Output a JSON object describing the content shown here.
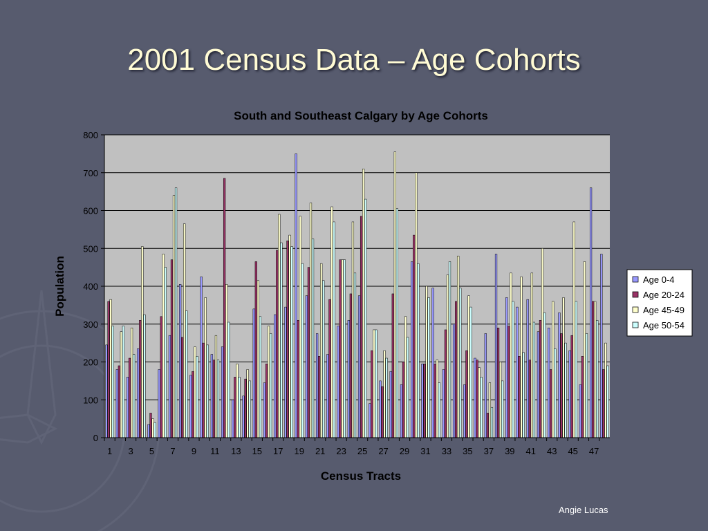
{
  "slide": {
    "title": "2001 Census Data – Age Cohorts",
    "credit": "Angie Lucas"
  },
  "colors": {
    "background": "#575b6e",
    "plot_area": "#c0c0c0",
    "title_text": "#fffbd4"
  },
  "chart_data": {
    "type": "bar",
    "title": "South and Southeast Calgary by Age Cohorts",
    "xlabel": "Census Tracts",
    "ylabel": "Population",
    "ylim": [
      0,
      800
    ],
    "yticks": [
      0,
      100,
      200,
      300,
      400,
      500,
      600,
      700,
      800
    ],
    "grid": true,
    "legend_position": "right",
    "categories": [
      1,
      2,
      3,
      4,
      5,
      6,
      7,
      8,
      9,
      10,
      11,
      12,
      13,
      14,
      15,
      16,
      17,
      18,
      19,
      20,
      21,
      22,
      23,
      24,
      25,
      26,
      27,
      28,
      29,
      30,
      31,
      32,
      33,
      34,
      35,
      36,
      37,
      38,
      39,
      40,
      41,
      42,
      43,
      44,
      45,
      46,
      47,
      48
    ],
    "xtick_labels": [
      "1",
      "3",
      "5",
      "7",
      "9",
      "11",
      "13",
      "15",
      "17",
      "19",
      "21",
      "23",
      "25",
      "27",
      "29",
      "31",
      "33",
      "35",
      "37",
      "39",
      "41",
      "43",
      "45",
      "47"
    ],
    "series": [
      {
        "name": "Age 0-4",
        "color": "#9999ff",
        "values": [
          245,
          180,
          160,
          235,
          35,
          180,
          270,
          405,
          165,
          425,
          220,
          240,
          100,
          110,
          340,
          145,
          325,
          345,
          750,
          375,
          275,
          220,
          295,
          310,
          375,
          90,
          150,
          175,
          140,
          465,
          195,
          395,
          180,
          300,
          140,
          210,
          275,
          485,
          370,
          345,
          365,
          280,
          290,
          330,
          230,
          140,
          660,
          485
        ]
      },
      {
        "name": "Age 20-24",
        "color": "#993366",
        "values": [
          360,
          190,
          210,
          310,
          65,
          320,
          470,
          265,
          175,
          250,
          205,
          685,
          160,
          155,
          465,
          195,
          495,
          520,
          310,
          450,
          215,
          365,
          470,
          380,
          585,
          230,
          135,
          380,
          200,
          535,
          195,
          195,
          285,
          360,
          230,
          205,
          65,
          290,
          295,
          215,
          205,
          310,
          180,
          275,
          270,
          215,
          360,
          180
        ]
      },
      {
        "name": "Age 45-49",
        "color": "#ffffcc",
        "values": [
          365,
          280,
          290,
          505,
          50,
          485,
          640,
          565,
          240,
          370,
          270,
          405,
          195,
          180,
          415,
          295,
          590,
          535,
          585,
          620,
          460,
          610,
          470,
          570,
          710,
          285,
          230,
          755,
          320,
          700,
          400,
          205,
          430,
          480,
          375,
          185,
          145,
          200,
          435,
          425,
          435,
          500,
          360,
          370,
          570,
          465,
          360,
          250
        ]
      },
      {
        "name": "Age 50-54",
        "color": "#ccffff",
        "values": [
          295,
          295,
          220,
          325,
          40,
          450,
          660,
          335,
          215,
          245,
          205,
          305,
          160,
          150,
          320,
          275,
          515,
          505,
          460,
          525,
          415,
          570,
          470,
          435,
          630,
          285,
          210,
          605,
          265,
          460,
          370,
          145,
          465,
          395,
          345,
          160,
          80,
          150,
          360,
          225,
          305,
          330,
          235,
          250,
          360,
          275,
          310,
          190
        ]
      }
    ]
  }
}
